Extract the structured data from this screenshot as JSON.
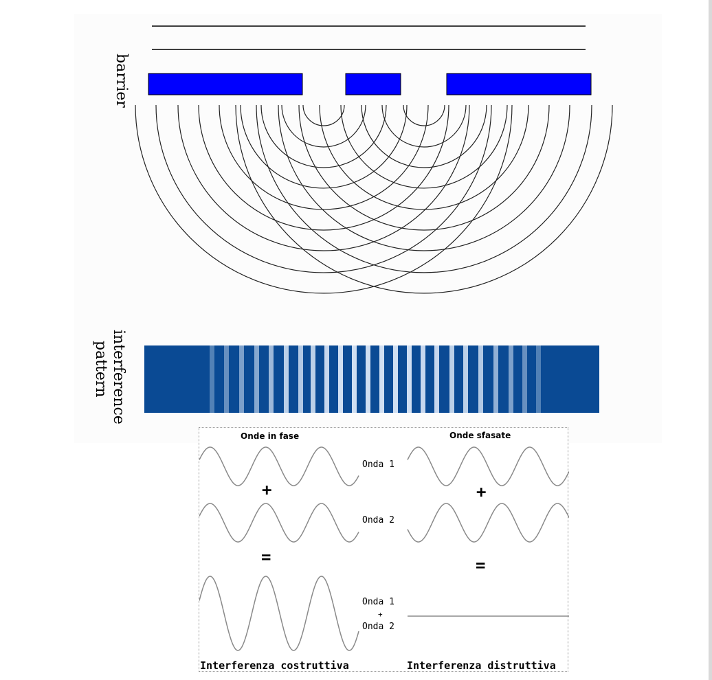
{
  "top": {
    "barrier_label": "barrier",
    "pattern_label": "interference pattern",
    "slit_fill": "#0000ff",
    "pattern_color": "#0a4a94",
    "pattern_light": "#dbe7f7"
  },
  "bottom": {
    "in_phase_heading": "Onde in fase",
    "out_of_phase_heading": "Onde sfasate",
    "wave1_label": "Onda 1",
    "wave2_label": "Onda 2",
    "sum_line1": "Onda 1",
    "sum_plus": "+",
    "sum_line2": "Onda 2",
    "plus_symbol": "+",
    "equals_symbol": "=",
    "constructive_caption": "Interferenza costruttiva",
    "destructive_caption": "Interferenza distruttiva"
  }
}
